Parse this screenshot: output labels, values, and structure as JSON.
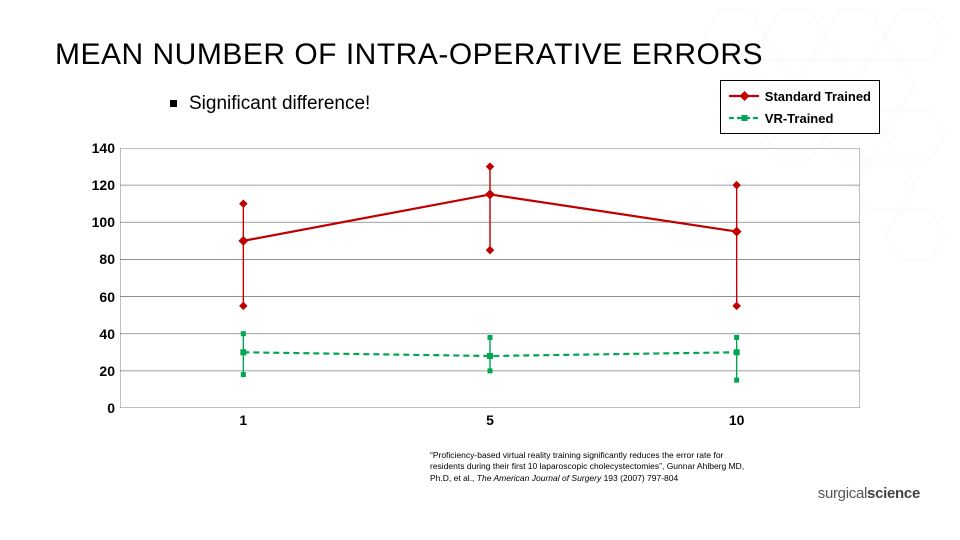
{
  "title": "MEAN NUMBER OF INTRA-OPERATIVE ERRORS",
  "bullet": "Significant difference!",
  "legend": {
    "series1": "Standard Trained",
    "series2": "VR-Trained"
  },
  "chart": {
    "type": "line-with-errorbars",
    "ylim": [
      0,
      140
    ],
    "ytick_step": 20,
    "yticks": [
      0,
      20,
      40,
      60,
      80,
      100,
      120,
      140
    ],
    "x_categories": [
      "1",
      "5",
      "10"
    ],
    "plot_bg": "#ffffff",
    "border_color": "#808080",
    "grid_color": "#808080",
    "series": [
      {
        "name": "Standard Trained",
        "color": "#c00000",
        "line_width": 2.2,
        "marker": "diamond",
        "marker_size": 7,
        "dash": "solid",
        "y": [
          90,
          115,
          95
        ],
        "err_low": [
          55,
          85,
          55
        ],
        "err_high": [
          110,
          130,
          120
        ]
      },
      {
        "name": "VR-Trained",
        "color": "#00a651",
        "line_width": 2.2,
        "marker": "square",
        "marker_size": 6,
        "dash": "dash",
        "y": [
          30,
          28,
          30
        ],
        "err_low": [
          18,
          20,
          15
        ],
        "err_high": [
          40,
          38,
          38
        ]
      }
    ]
  },
  "citation_parts": {
    "p1": "“Proficiency-based virtual reality training significantly reduces the error rate for residents during their first 10 laparoscopic cholecystectomies”, Gunnar Ahlberg MD, Ph.D, et al., ",
    "p2": "The American Journal of Surgery",
    "p3": " 193 (2007) 797-804"
  },
  "logo": {
    "a": "surgical",
    "b": "science"
  }
}
